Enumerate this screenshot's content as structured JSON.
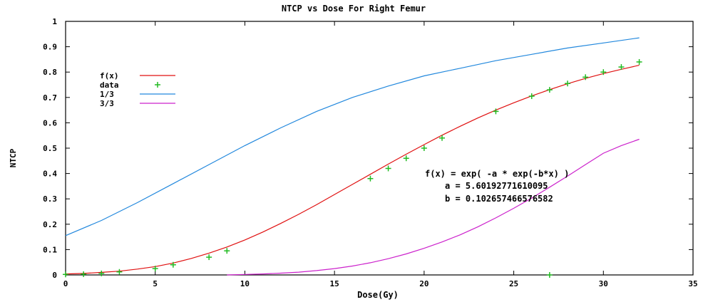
{
  "chart_data": {
    "type": "line",
    "title": "NTCP vs Dose For Right Femur",
    "xlabel": "Dose(Gy)",
    "ylabel": "NTCP",
    "xlim": [
      0,
      35
    ],
    "ylim": [
      0,
      1
    ],
    "x_ticks": [
      0,
      5,
      10,
      15,
      20,
      25,
      30,
      35
    ],
    "x_tick_labels": [
      "0",
      "5",
      "10",
      "15",
      "20",
      "25",
      "30",
      "35"
    ],
    "y_ticks": [
      0,
      0.1,
      0.2,
      0.3,
      0.4,
      0.5,
      0.6,
      0.7,
      0.8,
      0.9,
      1
    ],
    "y_tick_labels": [
      "0",
      "0.1",
      "0.2",
      "0.3",
      "0.4",
      "0.5",
      "0.6",
      "0.7",
      "0.8",
      "0.9",
      "1"
    ],
    "grid": false,
    "legend_position": "top-left",
    "series": [
      {
        "name": "f(x)",
        "kind": "line",
        "color": "#e01010",
        "x": [
          0,
          1,
          2,
          3,
          4,
          5,
          6,
          7,
          8,
          9,
          10,
          11,
          12,
          13,
          14,
          15,
          16,
          17,
          18,
          19,
          20,
          21,
          22,
          23,
          24,
          25,
          26,
          27,
          28,
          29,
          30,
          31,
          32
        ],
        "y": [
          0.004,
          0.006,
          0.01,
          0.015,
          0.023,
          0.033,
          0.047,
          0.065,
          0.086,
          0.11,
          0.138,
          0.169,
          0.203,
          0.239,
          0.277,
          0.317,
          0.357,
          0.397,
          0.437,
          0.476,
          0.514,
          0.551,
          0.586,
          0.619,
          0.65,
          0.679,
          0.706,
          0.731,
          0.754,
          0.775,
          0.794,
          0.811,
          0.827
        ]
      },
      {
        "name": "data",
        "kind": "scatter",
        "color": "#22bb22",
        "x": [
          0,
          1,
          2,
          3,
          5,
          6,
          8,
          9,
          17,
          18,
          19,
          20,
          21,
          24,
          26,
          27,
          28,
          29,
          30,
          31,
          32,
          27
        ],
        "y": [
          0.002,
          0.003,
          0.006,
          0.012,
          0.025,
          0.04,
          0.07,
          0.095,
          0.38,
          0.42,
          0.46,
          0.5,
          0.54,
          0.645,
          0.705,
          0.73,
          0.755,
          0.78,
          0.8,
          0.82,
          0.84,
          0.0
        ]
      },
      {
        "name": "1/3",
        "kind": "line",
        "color": "#2288dd",
        "x": [
          0,
          2,
          4,
          6,
          8,
          10,
          12,
          14,
          16,
          18,
          20,
          22,
          24,
          26,
          28,
          30,
          32
        ],
        "y": [
          0.155,
          0.215,
          0.285,
          0.36,
          0.435,
          0.51,
          0.58,
          0.645,
          0.7,
          0.745,
          0.785,
          0.815,
          0.845,
          0.87,
          0.895,
          0.915,
          0.935
        ]
      },
      {
        "name": "3/3",
        "kind": "line",
        "color": "#cc22cc",
        "x": [
          9,
          10,
          11,
          12,
          13,
          14,
          15,
          16,
          17,
          18,
          19,
          20,
          21,
          22,
          23,
          24,
          25,
          26,
          27,
          28,
          29,
          30,
          31,
          32
        ],
        "y": [
          0.0,
          0.002,
          0.004,
          0.007,
          0.011,
          0.017,
          0.025,
          0.035,
          0.048,
          0.064,
          0.083,
          0.105,
          0.13,
          0.158,
          0.19,
          0.225,
          0.263,
          0.303,
          0.346,
          0.39,
          0.435,
          0.48,
          0.51,
          0.535
        ]
      }
    ],
    "annotations": [
      "f(x) = exp( -a * exp(-b*x) )",
      "a = 5.60192771610095",
      "b = 0.102657466576582"
    ]
  }
}
